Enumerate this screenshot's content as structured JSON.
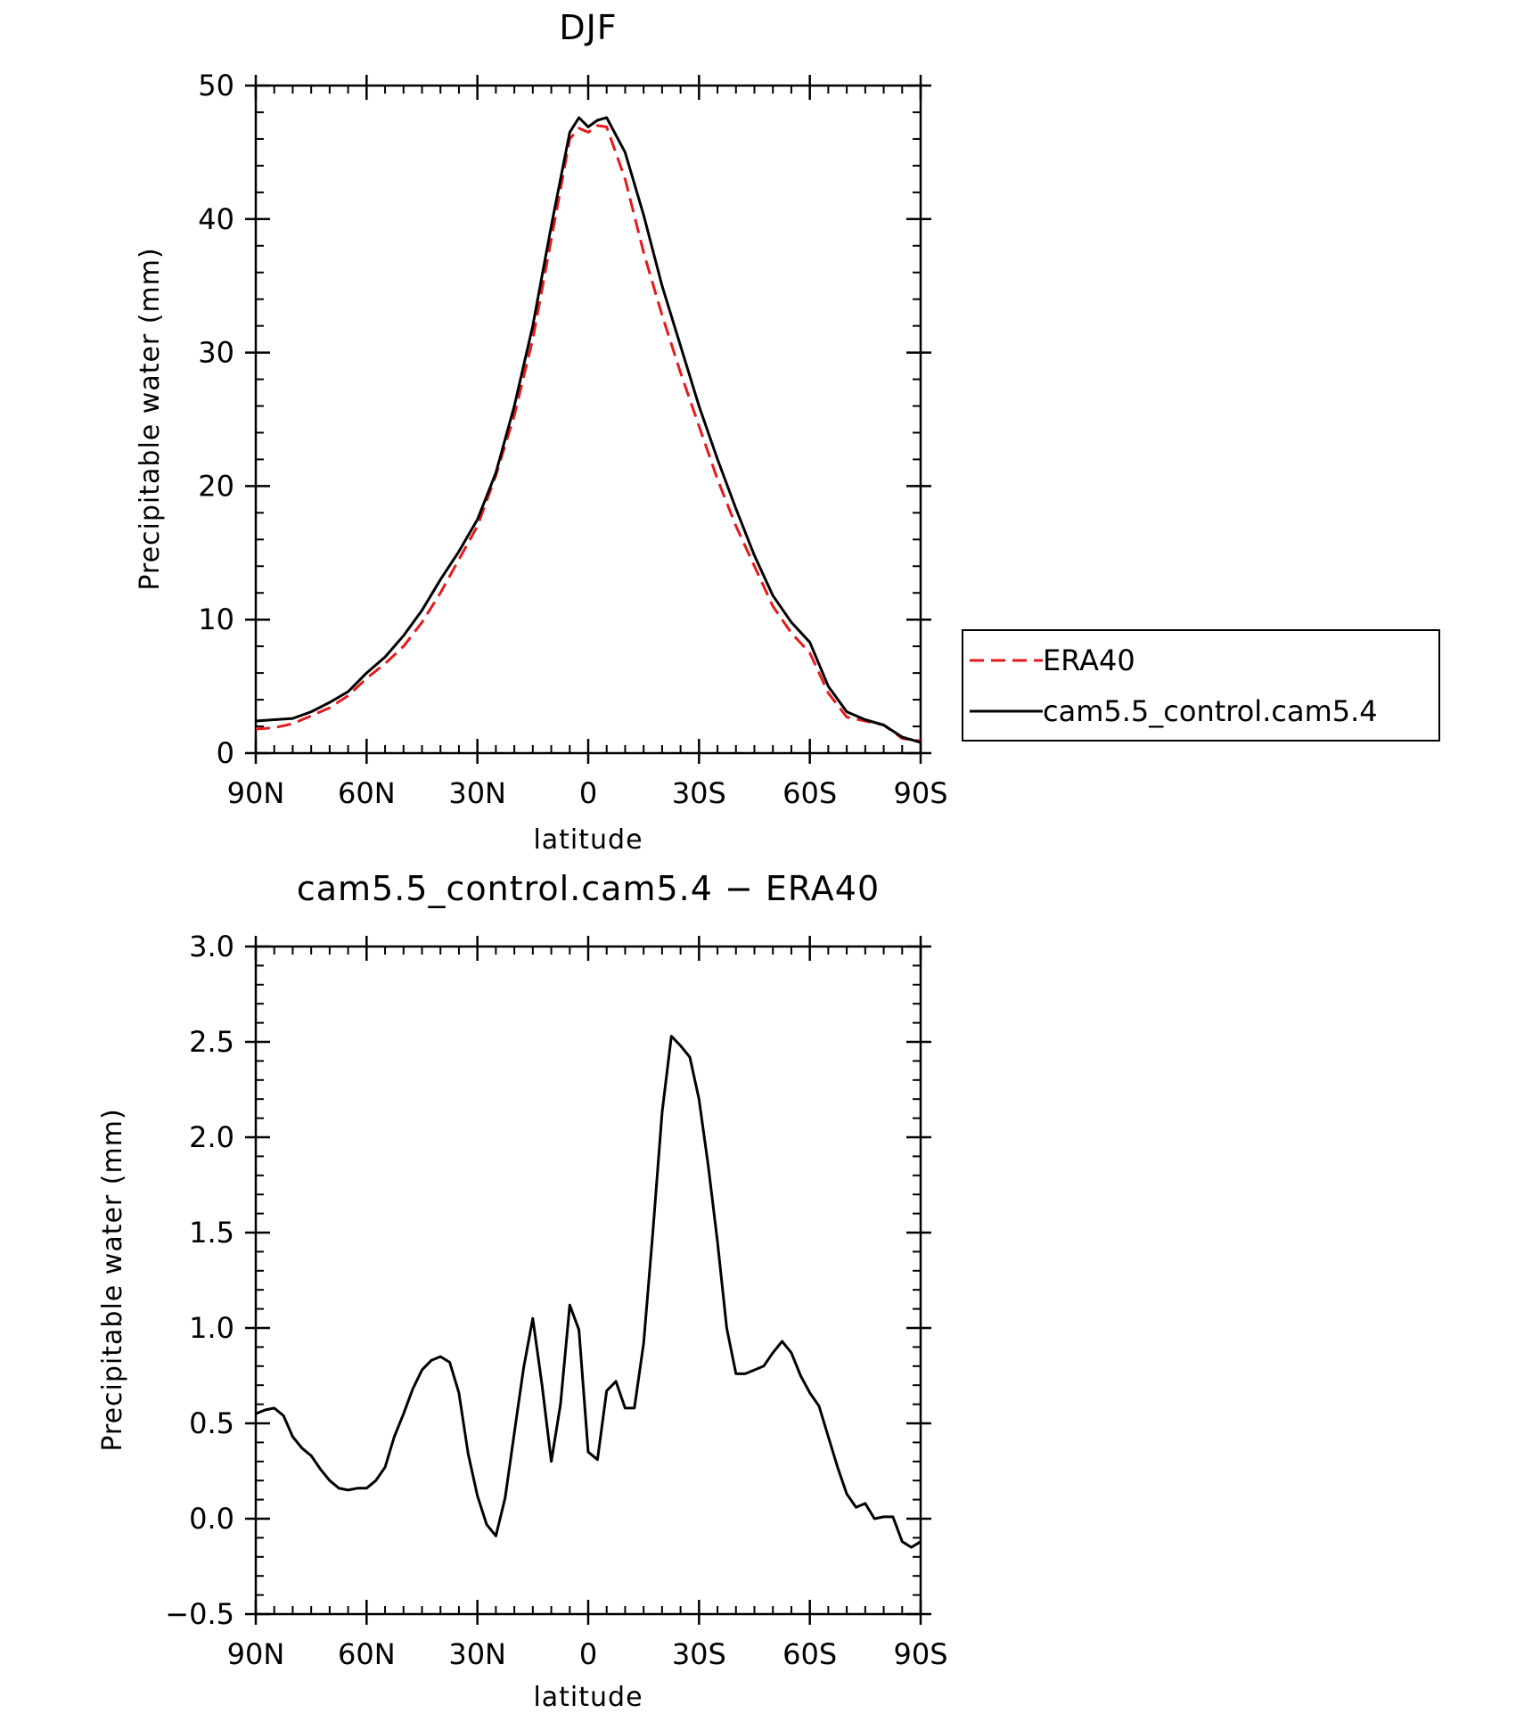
{
  "chart_data": [
    {
      "type": "line",
      "title": "DJF",
      "xlabel": "latitude",
      "ylabel": "Precipitable water (mm)",
      "xlim": [
        90,
        -90
      ],
      "ylim": [
        0,
        50
      ],
      "x_ticks": [
        90,
        60,
        30,
        0,
        -30,
        -60,
        -90
      ],
      "x_tick_labels": [
        "90N",
        "60N",
        "30N",
        "0",
        "30S",
        "60S",
        "90S"
      ],
      "y_ticks": [
        0,
        10,
        20,
        30,
        40,
        50
      ],
      "y_tick_labels": [
        "0",
        "10",
        "20",
        "30",
        "40",
        "50"
      ],
      "legend_position": "right",
      "series": [
        {
          "name": "ERA40",
          "color": "#e41a1c",
          "dash": "dashed",
          "x": [
            90,
            85,
            80,
            75,
            70,
            65,
            60,
            55,
            50,
            45,
            40,
            35,
            30,
            25,
            20,
            15,
            10,
            5,
            2.5,
            0,
            -2.5,
            -5,
            -10,
            -15,
            -20,
            -25,
            -30,
            -35,
            -40,
            -45,
            -50,
            -55,
            -60,
            -65,
            -70,
            -75,
            -80,
            -85,
            -90
          ],
          "y": [
            1.8,
            1.9,
            2.2,
            2.8,
            3.4,
            4.3,
            5.6,
            6.7,
            8.0,
            9.8,
            12.0,
            14.5,
            17.0,
            20.8,
            25.3,
            31.0,
            38.5,
            46.0,
            46.8,
            46.5,
            47.0,
            46.9,
            43.0,
            37.5,
            32.8,
            28.5,
            24.5,
            20.5,
            17.0,
            14.0,
            11.0,
            9.0,
            7.5,
            4.5,
            2.7,
            2.4,
            2.1,
            1.1,
            0.9
          ]
        },
        {
          "name": "cam5.5_control.cam5.4",
          "color": "#000000",
          "dash": "solid",
          "x": [
            90,
            85,
            80,
            75,
            70,
            65,
            60,
            55,
            50,
            45,
            40,
            35,
            30,
            25,
            20,
            15,
            10,
            5,
            2.5,
            0,
            -2.5,
            -5,
            -10,
            -15,
            -20,
            -25,
            -30,
            -35,
            -40,
            -45,
            -50,
            -55,
            -60,
            -65,
            -70,
            -75,
            -80,
            -85,
            -90
          ],
          "y": [
            2.4,
            2.5,
            2.6,
            3.1,
            3.8,
            4.6,
            6.0,
            7.2,
            8.8,
            10.7,
            13.0,
            15.1,
            17.5,
            21.0,
            26.0,
            32.0,
            39.5,
            46.5,
            47.6,
            46.9,
            47.4,
            47.6,
            45.0,
            40.3,
            35.0,
            30.5,
            26.0,
            22.0,
            18.3,
            14.8,
            11.8,
            9.8,
            8.3,
            5.0,
            3.1,
            2.5,
            2.1,
            1.2,
            0.8
          ]
        }
      ]
    },
    {
      "type": "line",
      "title": "cam5.5_control.cam5.4 − ERA40",
      "xlabel": "latitude",
      "ylabel": "Precipitable water (mm)",
      "xlim": [
        90,
        -90
      ],
      "ylim": [
        -0.5,
        3.0
      ],
      "x_ticks": [
        90,
        60,
        30,
        0,
        -30,
        -60,
        -90
      ],
      "x_tick_labels": [
        "90N",
        "60N",
        "30N",
        "0",
        "30S",
        "60S",
        "90S"
      ],
      "y_ticks": [
        -0.5,
        0.0,
        0.5,
        1.0,
        1.5,
        2.0,
        2.5,
        3.0
      ],
      "y_tick_labels": [
        "−0.5",
        "0.0",
        "0.5",
        "1.0",
        "1.5",
        "2.0",
        "2.5",
        "3.0"
      ],
      "series": [
        {
          "color": "#000000",
          "dash": "solid",
          "x": [
            90,
            87.5,
            85,
            82.5,
            80,
            77.5,
            75,
            72.5,
            70,
            67.5,
            65,
            62.5,
            60,
            57.5,
            55,
            52.5,
            50,
            47.5,
            45,
            42.5,
            40,
            37.5,
            35,
            32.5,
            30,
            27.5,
            25,
            22.5,
            20,
            17.5,
            15,
            12.5,
            10,
            7.5,
            5,
            2.5,
            0,
            -2.5,
            -5,
            -7.5,
            -10,
            -12.5,
            -15,
            -17.5,
            -20,
            -22.5,
            -25,
            -27.5,
            -30,
            -32.5,
            -35,
            -37.5,
            -40,
            -42.5,
            -45,
            -47.5,
            -50,
            -52.5,
            -55,
            -57.5,
            -60,
            -62.5,
            -65,
            -67.5,
            -70,
            -72.5,
            -75,
            -77.5,
            -80,
            -82.5,
            -85,
            -87.5,
            -90
          ],
          "y": [
            0.55,
            0.57,
            0.58,
            0.54,
            0.43,
            0.37,
            0.33,
            0.26,
            0.2,
            0.16,
            0.15,
            0.16,
            0.16,
            0.2,
            0.27,
            0.43,
            0.55,
            0.68,
            0.78,
            0.83,
            0.85,
            0.82,
            0.66,
            0.34,
            0.12,
            -0.03,
            -0.09,
            0.11,
            0.45,
            0.79,
            1.05,
            0.7,
            0.3,
            0.6,
            1.12,
            0.99,
            0.35,
            0.31,
            0.67,
            0.72,
            0.58,
            0.58,
            0.92,
            1.5,
            2.13,
            2.53,
            2.48,
            2.42,
            2.2,
            1.85,
            1.45,
            1.0,
            0.76,
            0.76,
            0.78,
            0.8,
            0.87,
            0.93,
            0.87,
            0.75,
            0.66,
            0.59,
            0.43,
            0.27,
            0.13,
            0.06,
            0.08,
            0.0,
            0.01,
            0.01,
            -0.12,
            -0.15,
            -0.12
          ]
        }
      ]
    }
  ]
}
